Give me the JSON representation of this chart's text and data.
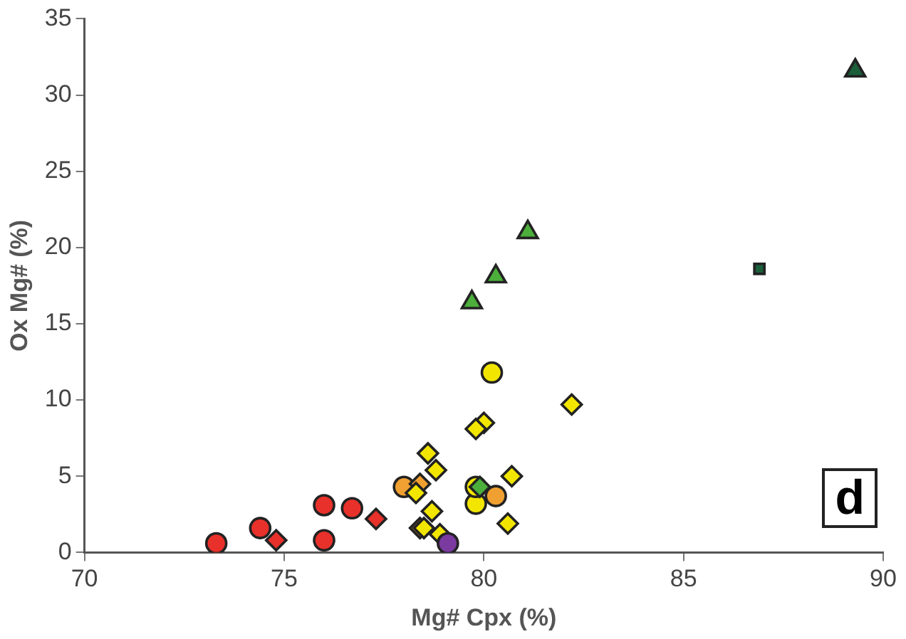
{
  "chart_data": {
    "type": "scatter",
    "xlabel": "Mg# Cpx (%)",
    "ylabel": "Ox Mg# (%)",
    "xlim": [
      70,
      90
    ],
    "xticks": [
      70,
      75,
      80,
      85,
      90
    ],
    "ylim": [
      0,
      35
    ],
    "yticks": [
      0,
      5,
      10,
      15,
      20,
      25,
      30,
      35
    ],
    "grid": false,
    "legend": false,
    "annotations": [
      "d"
    ],
    "series": [
      {
        "color": "#e8312a",
        "marker": "circle",
        "x": [
          73.3,
          74.4,
          76.0,
          76.0,
          76.7
        ],
        "values": [
          0.6,
          1.6,
          3.1,
          0.8,
          2.9
        ]
      },
      {
        "color": "#e8312a",
        "marker": "diamond",
        "x": [
          74.8,
          77.3
        ],
        "values": [
          0.8,
          2.2
        ]
      },
      {
        "color": "#f0a030",
        "marker": "circle",
        "x": [
          78.0,
          80.3
        ],
        "values": [
          4.3,
          3.7
        ]
      },
      {
        "color": "#f0a030",
        "marker": "diamond",
        "x": [
          78.4,
          78.4
        ],
        "values": [
          4.5,
          1.6
        ]
      },
      {
        "color": "#f2e600",
        "marker": "circle",
        "x": [
          80.2,
          79.8,
          79.8
        ],
        "values": [
          11.8,
          3.2,
          4.3
        ]
      },
      {
        "color": "#f2e600",
        "marker": "diamond",
        "x": [
          82.2,
          80.0,
          79.8,
          78.6,
          78.8,
          80.7,
          78.7,
          78.5,
          78.9,
          80.6,
          78.3
        ],
        "values": [
          9.7,
          8.5,
          8.1,
          6.5,
          5.4,
          5.0,
          2.7,
          1.6,
          1.2,
          1.9,
          3.9
        ]
      },
      {
        "color": "#4caf3c",
        "marker": "diamond",
        "x": [
          79.9
        ],
        "values": [
          4.3
        ]
      },
      {
        "color": "#4caf3c",
        "marker": "triangle",
        "x": [
          79.7,
          80.3,
          81.1
        ],
        "values": [
          16.4,
          18.1,
          21.0
        ]
      },
      {
        "color": "#1a5e3a",
        "marker": "triangle",
        "x": [
          89.3
        ],
        "values": [
          31.6
        ]
      },
      {
        "color": "#1a5e3a",
        "marker": "square",
        "x": [
          86.9
        ],
        "values": [
          18.6
        ]
      },
      {
        "color": "#7a3aa0",
        "marker": "circle",
        "x": [
          79.1
        ],
        "values": [
          0.6
        ]
      }
    ]
  }
}
